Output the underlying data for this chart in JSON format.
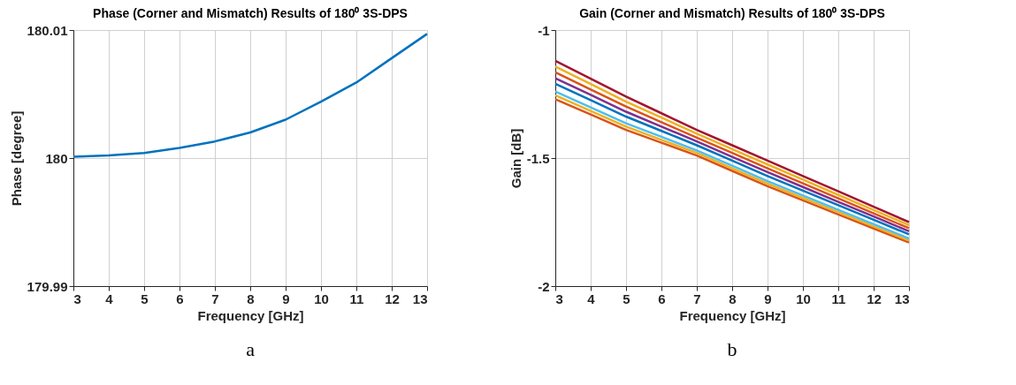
{
  "chart_data": [
    {
      "type": "line",
      "title": "Phase (Corner and Mismatch) Results of 180⁰ 3S-DPS",
      "xlabel": "Frequency [GHz]",
      "ylabel": "Phase [degree]",
      "x": [
        3,
        4,
        5,
        6,
        7,
        8,
        9,
        10,
        11,
        12,
        13
      ],
      "series": [
        {
          "color": "#0072bd",
          "values": [
            180.0001,
            180.0002,
            180.0004,
            180.0008,
            180.0013,
            180.002,
            180.003,
            180.0044,
            180.0059,
            180.0078,
            180.0097
          ]
        }
      ],
      "xlim": [
        3,
        13
      ],
      "xticks": [
        3,
        4,
        5,
        6,
        7,
        8,
        9,
        10,
        11,
        12,
        13
      ],
      "ylim": [
        179.99,
        180.01
      ],
      "yticks": [
        179.99,
        180,
        180.01
      ],
      "grid": true,
      "legend": false,
      "annotations": [
        "a"
      ]
    },
    {
      "type": "line",
      "title": "Gain (Corner and Mismatch) Results of 180⁰ 3S-DPS",
      "xlabel": "Frequency [GHz]",
      "ylabel": "Gain [dB]",
      "x": [
        3,
        4,
        5,
        6,
        7,
        8,
        9,
        10,
        11,
        12,
        13
      ],
      "series": [
        {
          "color": "#d95319",
          "values": [
            -1.27,
            -1.33,
            -1.39,
            -1.44,
            -1.49,
            -1.55,
            -1.61,
            -1.665,
            -1.72,
            -1.775,
            -1.83
          ]
        },
        {
          "color": "#edb120",
          "values": [
            -1.255,
            -1.316,
            -1.377,
            -1.429,
            -1.48,
            -1.54,
            -1.6,
            -1.656,
            -1.711,
            -1.767,
            -1.822
          ]
        },
        {
          "color": "#4dbeee",
          "values": [
            -1.24,
            -1.302,
            -1.364,
            -1.417,
            -1.47,
            -1.53,
            -1.59,
            -1.646,
            -1.702,
            -1.758,
            -1.814
          ]
        },
        {
          "color": "#0072bd",
          "values": [
            -1.21,
            -1.274,
            -1.338,
            -1.394,
            -1.45,
            -1.51,
            -1.57,
            -1.627,
            -1.684,
            -1.741,
            -1.798
          ]
        },
        {
          "color": "#7e2f8e",
          "values": [
            -1.188,
            -1.253,
            -1.319,
            -1.377,
            -1.435,
            -1.495,
            -1.555,
            -1.613,
            -1.671,
            -1.728,
            -1.786
          ]
        },
        {
          "color": "#d95319",
          "values": [
            -1.165,
            -1.232,
            -1.299,
            -1.36,
            -1.42,
            -1.48,
            -1.54,
            -1.599,
            -1.657,
            -1.716,
            -1.774
          ]
        },
        {
          "color": "#edb120",
          "values": [
            -1.143,
            -1.211,
            -1.28,
            -1.342,
            -1.405,
            -1.465,
            -1.525,
            -1.584,
            -1.644,
            -1.703,
            -1.762
          ]
        },
        {
          "color": "#a2142f",
          "values": [
            -1.12,
            -1.19,
            -1.26,
            -1.325,
            -1.39,
            -1.45,
            -1.51,
            -1.57,
            -1.63,
            -1.69,
            -1.75
          ]
        }
      ],
      "xlim": [
        3,
        13
      ],
      "xticks": [
        3,
        4,
        5,
        6,
        7,
        8,
        9,
        10,
        11,
        12,
        13
      ],
      "ylim": [
        -2,
        -1
      ],
      "yticks": [
        -2,
        -1.5,
        -1
      ],
      "grid": true,
      "legend": false,
      "annotations": [
        "b"
      ]
    }
  ]
}
